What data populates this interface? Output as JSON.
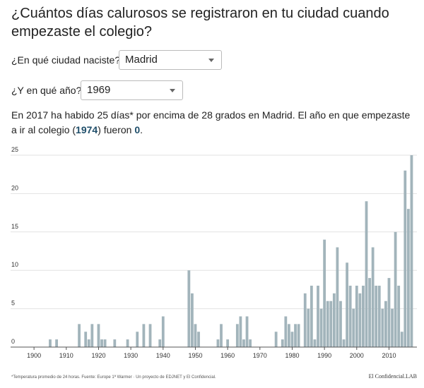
{
  "header": {
    "title": "¿Cuántos días calurosos se registraron en tu ciudad cuando empezaste el colegio?"
  },
  "form": {
    "city_label": "¿En qué ciudad naciste?",
    "city": "Madrid",
    "year_label": "¿Y en qué año?",
    "year": "1969"
  },
  "summary": {
    "text_1": "En 2017 ha habido 25 días* por encima de 28 grados en Madrid. El año en que empezaste a ir al colegio (",
    "school_year": "1974",
    "text_2": ") fueron ",
    "school_days": "0",
    "text_3": "."
  },
  "chart_data": {
    "type": "bar",
    "x": [
      1905,
      1907,
      1914,
      1916,
      1917,
      1918,
      1920,
      1921,
      1922,
      1925,
      1929,
      1932,
      1934,
      1936,
      1939,
      1940,
      1948,
      1949,
      1950,
      1951,
      1957,
      1958,
      1960,
      1963,
      1964,
      1965,
      1966,
      1967,
      1975,
      1977,
      1978,
      1979,
      1980,
      1981,
      1982,
      1984,
      1985,
      1986,
      1987,
      1988,
      1989,
      1990,
      1991,
      1992,
      1993,
      1994,
      1995,
      1996,
      1997,
      1998,
      1999,
      2000,
      2001,
      2002,
      2003,
      2004,
      2005,
      2006,
      2007,
      2008,
      2009,
      2010,
      2011,
      2012,
      2013,
      2014,
      2015,
      2016,
      2017
    ],
    "values": [
      1,
      1,
      3,
      2,
      1,
      3,
      3,
      1,
      1,
      1,
      1,
      2,
      3,
      3,
      1,
      4,
      10,
      7,
      3,
      2,
      1,
      3,
      1,
      3,
      4,
      1,
      4,
      1,
      2,
      1,
      4,
      3,
      2,
      3,
      3,
      7,
      5,
      8,
      1,
      8,
      5,
      14,
      6,
      6,
      7,
      13,
      6,
      1,
      11,
      8,
      5,
      8,
      7,
      8,
      19,
      9,
      13,
      8,
      8,
      5,
      6,
      9,
      5,
      15,
      8,
      2,
      23,
      18,
      25
    ],
    "color": "#a2b4bb",
    "xlim": [
      1898,
      2018
    ],
    "xticks": [
      1900,
      1910,
      1920,
      1930,
      1940,
      1950,
      1960,
      1970,
      1980,
      1990,
      2000,
      2010
    ],
    "ylim": [
      0,
      25
    ],
    "yticks": [
      0,
      5,
      10,
      15,
      20,
      25
    ],
    "grid": true
  },
  "footer": {
    "note": "*Temperatura promedio de 24 horas. Fuente: Europe 1ª Warmer · Un proyecto de EDJNET y El Confidencial.",
    "brand": "El Confidencial.LAB"
  }
}
